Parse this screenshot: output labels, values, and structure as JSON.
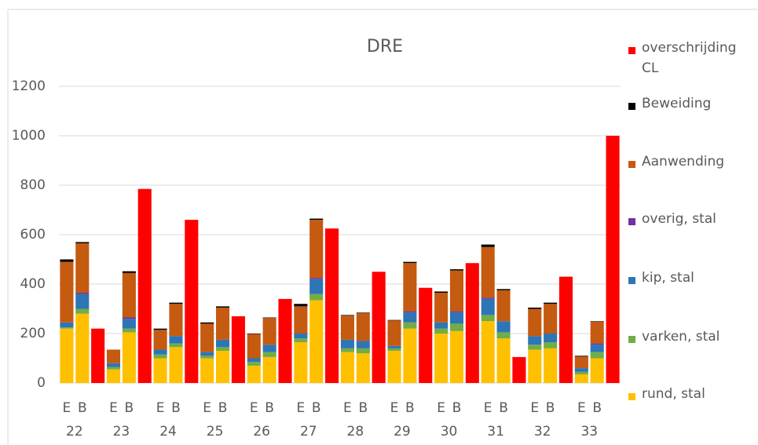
{
  "chart_data": {
    "type": "stacked_bar",
    "title": "DRE",
    "categories": [
      "E",
      "B",
      null,
      "E",
      "B",
      null,
      "E",
      "B",
      null,
      "E",
      "B",
      null,
      "E",
      "B",
      null,
      "E",
      "B",
      null,
      "E",
      "B",
      null,
      "E",
      "B",
      null,
      "E",
      "B",
      null,
      "E",
      "B",
      null,
      "E",
      "B",
      null,
      "E",
      "B",
      null
    ],
    "groups": [
      "22",
      "23",
      "24",
      "25",
      "26",
      "27",
      "28",
      "29",
      "30",
      "31",
      "32",
      "33"
    ],
    "ylim": [
      0,
      1200
    ],
    "yticks": [
      0,
      200,
      400,
      600,
      800,
      1000,
      1200
    ],
    "grid": true,
    "series": [
      {
        "name": "rund, stal",
        "color": "#ffc000",
        "values": [
          220,
          280,
          null,
          55,
          205,
          null,
          100,
          145,
          null,
          100,
          130,
          null,
          70,
          105,
          null,
          165,
          335,
          null,
          125,
          120,
          null,
          130,
          220,
          null,
          200,
          210,
          null,
          250,
          180,
          null,
          135,
          140,
          null,
          35,
          100,
          null
        ]
      },
      {
        "name": "varken, stal",
        "color": "#70ad47",
        "values": [
          5,
          20,
          null,
          10,
          15,
          null,
          15,
          15,
          null,
          10,
          15,
          null,
          15,
          20,
          null,
          15,
          25,
          null,
          15,
          20,
          null,
          10,
          25,
          null,
          20,
          30,
          null,
          25,
          25,
          null,
          20,
          25,
          null,
          10,
          25,
          null
        ]
      },
      {
        "name": "kip, stal",
        "color": "#2e75b6",
        "values": [
          20,
          60,
          null,
          15,
          40,
          null,
          20,
          30,
          null,
          15,
          30,
          null,
          15,
          30,
          null,
          20,
          60,
          null,
          35,
          30,
          null,
          10,
          40,
          null,
          25,
          45,
          null,
          65,
          45,
          null,
          35,
          35,
          null,
          15,
          30,
          null
        ]
      },
      {
        "name": "overig, stal",
        "color": "#7030a0",
        "values": [
          0,
          5,
          null,
          0,
          5,
          null,
          0,
          0,
          null,
          0,
          0,
          null,
          0,
          0,
          null,
          0,
          5,
          null,
          0,
          0,
          null,
          0,
          5,
          null,
          0,
          5,
          null,
          5,
          0,
          null,
          0,
          0,
          null,
          0,
          5,
          null
        ]
      },
      {
        "name": "Aanwending",
        "color": "#c55a11",
        "values": [
          245,
          200,
          null,
          55,
          180,
          null,
          80,
          130,
          null,
          115,
          130,
          null,
          98,
          108,
          null,
          110,
          235,
          null,
          98,
          113,
          null,
          103,
          195,
          null,
          120,
          165,
          null,
          205,
          125,
          null,
          110,
          120,
          null,
          47,
          88,
          null
        ]
      },
      {
        "name": "Beweiding",
        "color": "#000000",
        "values": [
          10,
          5,
          null,
          0,
          7,
          null,
          5,
          5,
          null,
          5,
          5,
          null,
          2,
          2,
          null,
          10,
          5,
          null,
          2,
          2,
          null,
          2,
          5,
          null,
          5,
          5,
          null,
          10,
          5,
          null,
          5,
          5,
          null,
          3,
          2,
          null
        ]
      },
      {
        "name": "overschrijding CL",
        "color": "#ff0000",
        "values": [
          null,
          null,
          220,
          null,
          null,
          785,
          null,
          null,
          660,
          null,
          null,
          270,
          null,
          null,
          340,
          null,
          null,
          625,
          null,
          null,
          450,
          null,
          null,
          385,
          null,
          null,
          485,
          null,
          null,
          105,
          null,
          null,
          430,
          null,
          null,
          1000
        ]
      }
    ]
  }
}
